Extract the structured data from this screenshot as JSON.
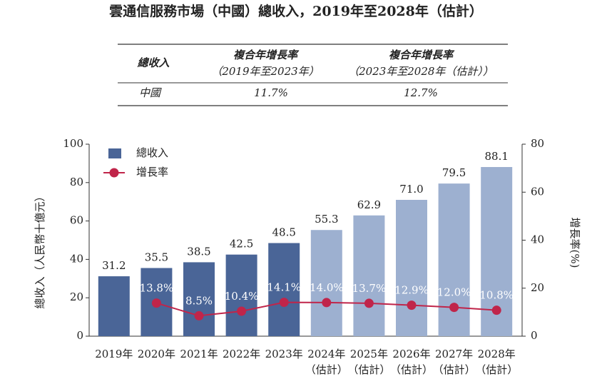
{
  "title": "雲通信服務市場（中國）總收入，2019年至2028年（估計）",
  "table": {
    "header": [
      "總收入",
      [
        "複合年增長率",
        "（2019年至2023年）"
      ],
      [
        "複合年增長率",
        "（2023年至2028年（估計））"
      ]
    ],
    "rows": [
      [
        "中國",
        "11.7%",
        "12.7%"
      ]
    ]
  },
  "chart_data": {
    "type": "bar",
    "categories": [
      "2019年",
      "2020年",
      "2021年",
      "2022年",
      "2023年",
      "2024年（估計）",
      "2025年（估計）",
      "2026年（估計）",
      "2027年（估計）",
      "2028年（估計）"
    ],
    "series": [
      {
        "name": "總收入",
        "color": "#4a6597",
        "colors": [
          "#4a6597",
          "#4a6597",
          "#4a6597",
          "#4a6597",
          "#4a6597",
          "#9db0d0",
          "#9db0d0",
          "#9db0d0",
          "#9db0d0",
          "#9db0d0"
        ],
        "values": [
          31.2,
          35.5,
          38.5,
          42.5,
          48.5,
          55.3,
          62.9,
          71.0,
          79.5,
          88.1
        ],
        "value_labels": [
          "31.2",
          "35.5",
          "38.5",
          "42.5",
          "48.5",
          "55.3",
          "62.9",
          "71.0",
          "79.5",
          "88.1"
        ]
      },
      {
        "name": "增長率",
        "type": "line",
        "axis": "y2",
        "color": "#c0254a",
        "values": [
          null,
          13.8,
          8.5,
          10.4,
          14.1,
          14.0,
          13.7,
          12.9,
          12.0,
          10.8
        ],
        "value_labels": [
          null,
          "13.8%",
          "8.5%",
          "10.4%",
          "14.1%",
          "14.0%",
          "13.7%",
          "12.9%",
          "12.0%",
          "10.8%"
        ]
      }
    ],
    "ylabel": "總收入（人民幣十億元）",
    "y2label": "增長率(%)",
    "ylim": [
      0,
      100
    ],
    "yticks": [
      0,
      20,
      40,
      60,
      80,
      100
    ],
    "y2lim": [
      0,
      80
    ],
    "y2ticks": [
      0,
      20,
      40,
      60,
      80
    ],
    "legend": "upper left"
  }
}
